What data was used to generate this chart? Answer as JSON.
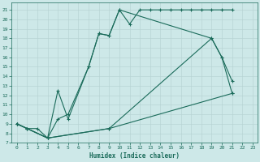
{
  "xlabel": "Humidex (Indice chaleur)",
  "bg_color": "#cde8e8",
  "grid_color": "#c0d8d8",
  "line_color": "#1a6b5a",
  "xlim": [
    -0.5,
    23.5
  ],
  "ylim": [
    7,
    21.8
  ],
  "xticks": [
    0,
    1,
    2,
    3,
    4,
    5,
    6,
    7,
    8,
    9,
    10,
    11,
    12,
    13,
    14,
    15,
    16,
    17,
    18,
    19,
    20,
    21,
    22,
    23
  ],
  "yticks": [
    7,
    8,
    9,
    10,
    11,
    12,
    13,
    14,
    15,
    16,
    17,
    18,
    19,
    20,
    21
  ],
  "series": [
    {
      "x": [
        0,
        1,
        2,
        3,
        4,
        5,
        7,
        8,
        9,
        10,
        11,
        12,
        13,
        14,
        15,
        16,
        17,
        18,
        19,
        20,
        21
      ],
      "y": [
        9,
        8.5,
        8.5,
        7.5,
        9.5,
        10,
        15,
        18.5,
        18.3,
        21,
        19.5,
        21,
        21,
        21,
        21,
        21,
        21,
        21,
        21,
        21,
        21
      ]
    },
    {
      "x": [
        0,
        1,
        3,
        4,
        5,
        7,
        8,
        9,
        10,
        19,
        20,
        21
      ],
      "y": [
        9,
        8.5,
        7.5,
        12.5,
        9.5,
        15,
        18.5,
        18.3,
        21,
        18,
        16,
        13.5
      ]
    },
    {
      "x": [
        0,
        1,
        3,
        9,
        19,
        20,
        21
      ],
      "y": [
        9,
        8.5,
        7.5,
        8.5,
        18,
        16,
        12.2
      ]
    },
    {
      "x": [
        0,
        3,
        9,
        21
      ],
      "y": [
        9,
        7.5,
        8.5,
        12.2
      ]
    }
  ]
}
